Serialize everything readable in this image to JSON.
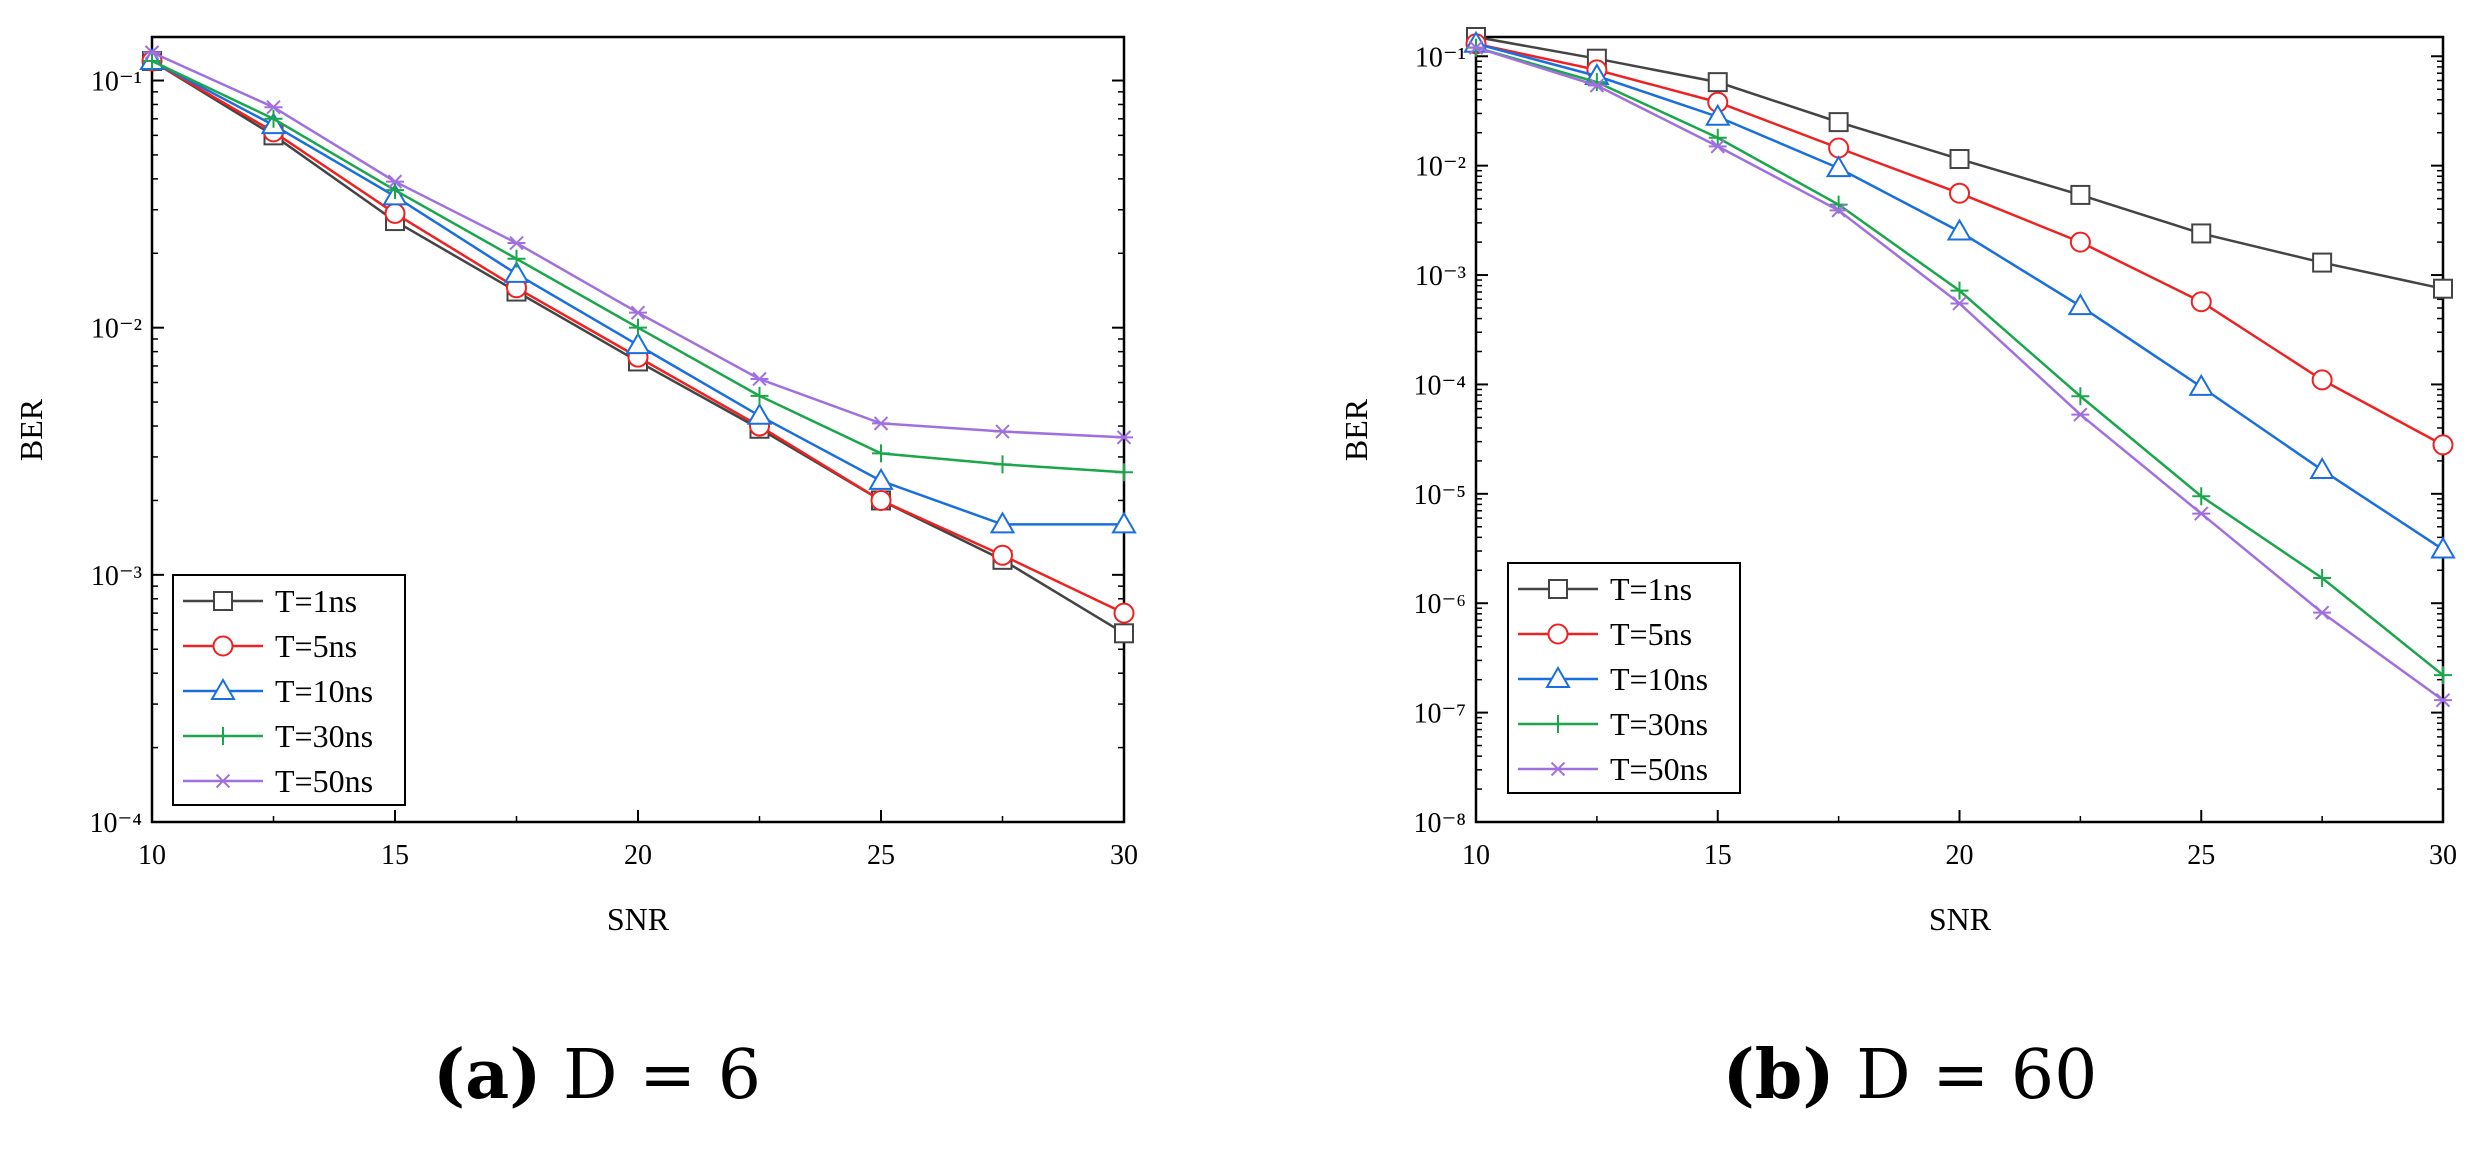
{
  "colors": {
    "T=1ns": "#444444",
    "T=5ns": "#ee2222",
    "T=10ns": "#1a6fdf",
    "T=30ns": "#1aa64a",
    "T=50ns": "#a070e0"
  },
  "chart_data": [
    {
      "type": "line",
      "yscale": "log",
      "xlabel": "SNR",
      "ylabel": "BER",
      "xlim": [
        10,
        30
      ],
      "ylim": [
        0.0001,
        0.15
      ],
      "xticks": [
        10,
        15,
        20,
        25,
        30
      ],
      "x": [
        10,
        12.5,
        15,
        17.5,
        20,
        22.5,
        25,
        27.5,
        30
      ],
      "caption_label": "(a)",
      "caption_text": "D = 6",
      "legend_position": "bottom-left",
      "series": [
        {
          "name": "T=1ns",
          "marker": "square",
          "values": [
            0.12,
            0.06,
            0.027,
            0.014,
            0.0073,
            0.0039,
            0.002,
            0.00115,
            0.00058
          ]
        },
        {
          "name": "T=5ns",
          "marker": "circle",
          "values": [
            0.12,
            0.062,
            0.029,
            0.0145,
            0.0076,
            0.004,
            0.002,
            0.0012,
            0.0007
          ]
        },
        {
          "name": "T=10ns",
          "marker": "triangle",
          "values": [
            0.12,
            0.066,
            0.034,
            0.0165,
            0.0085,
            0.0044,
            0.0024,
            0.0016,
            0.0016
          ]
        },
        {
          "name": "T=30ns",
          "marker": "plus",
          "values": [
            0.12,
            0.07,
            0.036,
            0.019,
            0.01,
            0.0053,
            0.0031,
            0.0028,
            0.0026
          ]
        },
        {
          "name": "T=50ns",
          "marker": "asterisk",
          "values": [
            0.13,
            0.078,
            0.039,
            0.022,
            0.0115,
            0.0062,
            0.0041,
            0.0038,
            0.0036
          ]
        }
      ]
    },
    {
      "type": "line",
      "yscale": "log",
      "xlabel": "SNR",
      "ylabel": "BER",
      "xlim": [
        10,
        30
      ],
      "ylim": [
        1e-08,
        0.15
      ],
      "xticks": [
        10,
        15,
        20,
        25,
        30
      ],
      "x": [
        10,
        12.5,
        15,
        17.5,
        20,
        22.5,
        25,
        27.5,
        30
      ],
      "caption_label": "(b)",
      "caption_text": "D = 60",
      "legend_position": "bottom-left",
      "series": [
        {
          "name": "T=1ns",
          "marker": "square",
          "values": [
            0.15,
            0.095,
            0.058,
            0.025,
            0.0115,
            0.0054,
            0.0024,
            0.0013,
            0.00075
          ]
        },
        {
          "name": "T=5ns",
          "marker": "circle",
          "values": [
            0.13,
            0.075,
            0.038,
            0.0145,
            0.0056,
            0.002,
            0.00057,
            0.00011,
            2.8e-05
          ]
        },
        {
          "name": "T=10ns",
          "marker": "triangle",
          "values": [
            0.13,
            0.066,
            0.028,
            0.0095,
            0.0025,
            0.00052,
            9.5e-05,
            1.65e-05,
            3.1e-06
          ]
        },
        {
          "name": "T=30ns",
          "marker": "plus",
          "values": [
            0.12,
            0.058,
            0.018,
            0.0044,
            0.00072,
            7.8e-05,
            9.5e-06,
            1.7e-06,
            2.2e-07
          ]
        },
        {
          "name": "T=50ns",
          "marker": "asterisk",
          "values": [
            0.12,
            0.054,
            0.015,
            0.0039,
            0.00055,
            5.3e-05,
            6.6e-06,
            8.2e-07,
            1.3e-07
          ]
        }
      ]
    }
  ]
}
